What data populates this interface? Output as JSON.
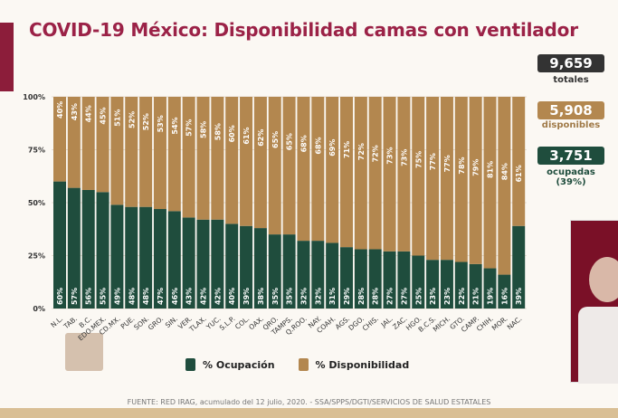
{
  "title": "COVID-19 México: Disponibilidad camas con ventilador",
  "stats": {
    "total": {
      "value": "9,659",
      "label": "totales"
    },
    "available": {
      "value": "5,908",
      "label": "disponibles"
    },
    "occupied": {
      "value": "3,751",
      "label": "ocupadas",
      "pct": "(39%)"
    }
  },
  "source": "FUENTE: RED IRAG, acumulado del 12 julio, 2020. -  SSA/SPPS/DGTI/SERVICIOS DE SALUD ESTATALES",
  "chart_data": {
    "type": "bar",
    "stacked": true,
    "ylim": [
      0,
      100
    ],
    "y_ticks": [
      "0%",
      "25%",
      "50%",
      "75%",
      "100%"
    ],
    "legend_position": "bottom",
    "categories": [
      "N.L.",
      "TAB.",
      "B.C.",
      "EDO.MEX.",
      "CD.MX.",
      "PUE.",
      "SON.",
      "GRO.",
      "SIN.",
      "VER.",
      "TLAX.",
      "YUC.",
      "S.L.P.",
      "COL.",
      "OAX.",
      "QRO.",
      "TAMPS.",
      "Q.ROO.",
      "NAY.",
      "COAH.",
      "AGS.",
      "DGO.",
      "CHIS.",
      "JAL.",
      "ZAC.",
      "HGO.",
      "B.C.S.",
      "MICH.",
      "GTO.",
      "CAMP.",
      "CHIH.",
      "MOR.",
      "NAC."
    ],
    "series": [
      {
        "name": "% Ocupación",
        "color": "#1f4d3d",
        "values": [
          60,
          57,
          56,
          55,
          49,
          48,
          48,
          47,
          46,
          43,
          42,
          42,
          40,
          39,
          38,
          35,
          35,
          32,
          32,
          31,
          29,
          28,
          28,
          27,
          27,
          25,
          23,
          23,
          22,
          21,
          19,
          16,
          39
        ]
      },
      {
        "name": "% Disponibilidad",
        "color": "#b3874f",
        "values": [
          40,
          43,
          44,
          45,
          51,
          52,
          52,
          53,
          54,
          57,
          58,
          58,
          60,
          61,
          62,
          65,
          65,
          68,
          68,
          69,
          71,
          72,
          72,
          73,
          73,
          75,
          77,
          77,
          78,
          79,
          81,
          84,
          61
        ]
      }
    ]
  }
}
